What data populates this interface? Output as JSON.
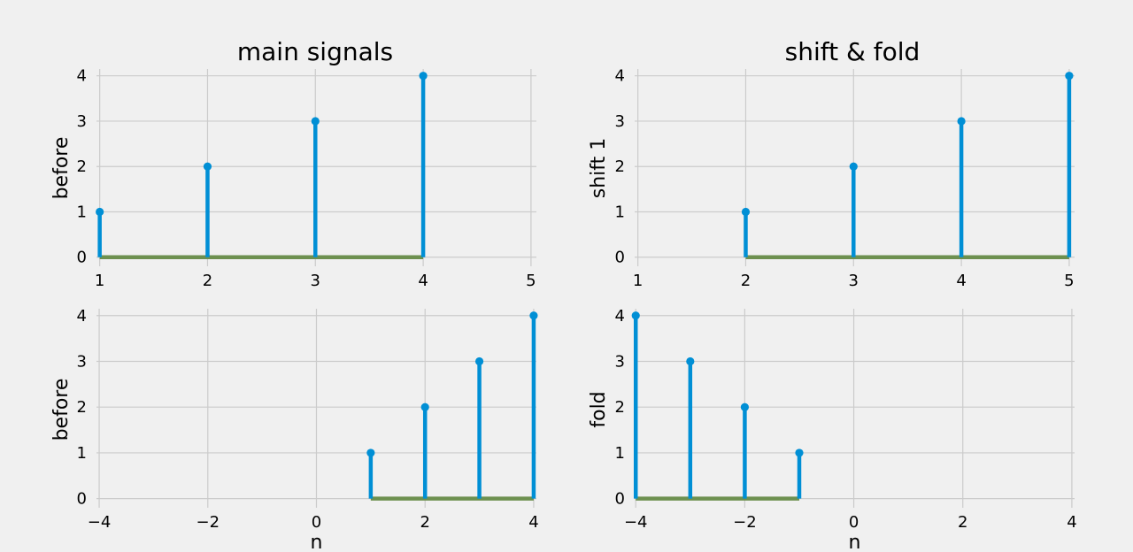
{
  "colors": {
    "background": "#f0f0f0",
    "stem": "#008fd5",
    "baseline": "#6d904f",
    "grid": "#cbcbcb"
  },
  "chart_data": [
    {
      "type": "stem",
      "title": "main signals",
      "xlabel": "",
      "ylabel": "before",
      "xlim": [
        0.97,
        5.05
      ],
      "ylim": [
        -0.2,
        4.15
      ],
      "xticks": [
        {
          "v": 1,
          "t": "1"
        },
        {
          "v": 2,
          "t": "2"
        },
        {
          "v": 3,
          "t": "3"
        },
        {
          "v": 4,
          "t": "4"
        },
        {
          "v": 5,
          "t": "5"
        }
      ],
      "yticks": [
        {
          "v": 0,
          "t": "0"
        },
        {
          "v": 1,
          "t": "1"
        },
        {
          "v": 2,
          "t": "2"
        },
        {
          "v": 3,
          "t": "3"
        },
        {
          "v": 4,
          "t": "4"
        }
      ],
      "grid": true,
      "x": [
        1,
        2,
        3,
        4
      ],
      "y": [
        1,
        2,
        3,
        4
      ]
    },
    {
      "type": "stem",
      "title": "shift & fold",
      "xlabel": "",
      "ylabel": "shift 1",
      "xlim": [
        0.97,
        5.05
      ],
      "ylim": [
        -0.2,
        4.15
      ],
      "xticks": [
        {
          "v": 1,
          "t": "1"
        },
        {
          "v": 2,
          "t": "2"
        },
        {
          "v": 3,
          "t": "3"
        },
        {
          "v": 4,
          "t": "4"
        },
        {
          "v": 5,
          "t": "5"
        }
      ],
      "yticks": [
        {
          "v": 0,
          "t": "0"
        },
        {
          "v": 1,
          "t": "1"
        },
        {
          "v": 2,
          "t": "2"
        },
        {
          "v": 3,
          "t": "3"
        },
        {
          "v": 4,
          "t": "4"
        }
      ],
      "grid": true,
      "x": [
        2,
        3,
        4,
        5
      ],
      "y": [
        1,
        2,
        3,
        4
      ]
    },
    {
      "type": "stem",
      "title": "",
      "xlabel": "n",
      "ylabel": "before",
      "xlim": [
        -4.05,
        4.05
      ],
      "ylim": [
        -0.2,
        4.15
      ],
      "xticks": [
        {
          "v": -4,
          "t": "−4"
        },
        {
          "v": -2,
          "t": "−2"
        },
        {
          "v": 0,
          "t": "0"
        },
        {
          "v": 2,
          "t": "2"
        },
        {
          "v": 4,
          "t": "4"
        }
      ],
      "yticks": [
        {
          "v": 0,
          "t": "0"
        },
        {
          "v": 1,
          "t": "1"
        },
        {
          "v": 2,
          "t": "2"
        },
        {
          "v": 3,
          "t": "3"
        },
        {
          "v": 4,
          "t": "4"
        }
      ],
      "grid": true,
      "x": [
        1,
        2,
        3,
        4
      ],
      "y": [
        1,
        2,
        3,
        4
      ]
    },
    {
      "type": "stem",
      "title": "",
      "xlabel": "n",
      "ylabel": "fold",
      "xlim": [
        -4.02,
        4.05
      ],
      "ylim": [
        -0.2,
        4.15
      ],
      "xticks": [
        {
          "v": -4,
          "t": "−4"
        },
        {
          "v": -2,
          "t": "−2"
        },
        {
          "v": 0,
          "t": "0"
        },
        {
          "v": 2,
          "t": "2"
        },
        {
          "v": 4,
          "t": "4"
        }
      ],
      "yticks": [
        {
          "v": 0,
          "t": "0"
        },
        {
          "v": 1,
          "t": "1"
        },
        {
          "v": 2,
          "t": "2"
        },
        {
          "v": 3,
          "t": "3"
        },
        {
          "v": 4,
          "t": "4"
        }
      ],
      "grid": true,
      "x": [
        -4,
        -3,
        -2,
        -1
      ],
      "y": [
        4,
        3,
        2,
        1
      ]
    }
  ]
}
